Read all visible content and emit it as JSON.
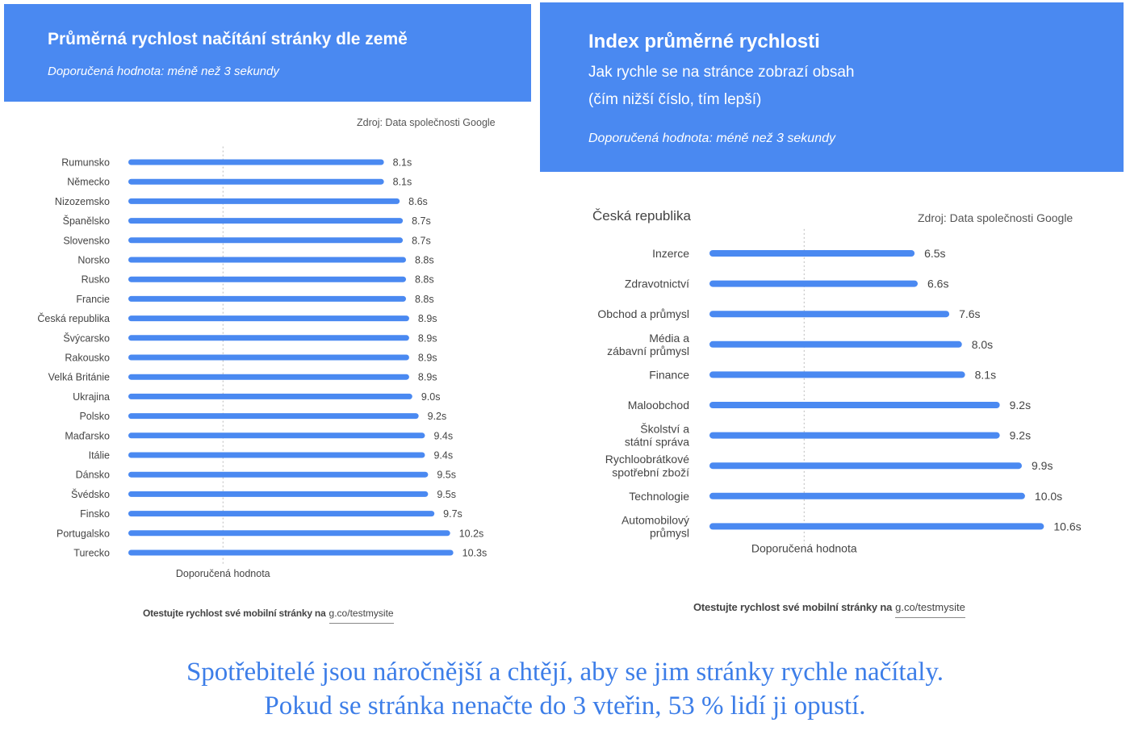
{
  "left": {
    "title": "Průměrná rychlost načítání stránky dle země",
    "note": "Doporučená hodnota: méně než 3 sekundy",
    "source": "Zdroj: Data společnosti Google",
    "footer_lead": "Otestujte rychlost své mobilní stránky na",
    "footer_link": "g.co/testmysite"
  },
  "right": {
    "title": "Index průměrné rychlosti",
    "subtitle_line1": "Jak rychle se na stránce zobrazí obsah",
    "subtitle_line2": "(čím nižší číslo, tím lepší)",
    "note": "Doporučená hodnota: méně než 3 sekundy",
    "chart_title": "Česká republika",
    "source": "Zdroj: Data společnosti Google",
    "footer_lead": "Otestujte rychlost své mobilní stránky na",
    "footer_link": "g.co/testmysite"
  },
  "caption": {
    "line1": "Spotřebitelé jsou náročnější a chtějí, aby se jim stránky rychle načítaly.",
    "line2": "Pokud se stránka nenačte do 3 vteřin, 53 % lidí ji opustí."
  },
  "colors": {
    "bar": "#4a89f1",
    "header": "#4a89f1",
    "caption": "#3d7ee8"
  },
  "chart_data": [
    {
      "type": "bar",
      "orientation": "horizontal",
      "title": "Průměrná rychlost načítání stránky dle země",
      "unit": "s",
      "reference_line": {
        "value": 3,
        "label": "Doporučená hodnota"
      },
      "categories": [
        "Rumunsko",
        "Německo",
        "Nizozemsko",
        "Španělsko",
        "Slovensko",
        "Norsko",
        "Rusko",
        "Francie",
        "Česká republika",
        "Švýcarsko",
        "Rakousko",
        "Velká Británie",
        "Ukrajina",
        "Polsko",
        "Maďarsko",
        "Itálie",
        "Dánsko",
        "Švédsko",
        "Finsko",
        "Portugalsko",
        "Turecko"
      ],
      "values": [
        8.1,
        8.1,
        8.6,
        8.7,
        8.7,
        8.8,
        8.8,
        8.8,
        8.9,
        8.9,
        8.9,
        8.9,
        9.0,
        9.2,
        9.4,
        9.4,
        9.5,
        9.5,
        9.7,
        10.2,
        10.3
      ],
      "value_labels": [
        "8.1s",
        "8.1s",
        "8.6s",
        "8.7s",
        "8.7s",
        "8.8s",
        "8.8s",
        "8.8s",
        "8.9s",
        "8.9s",
        "8.9s",
        "8.9s",
        "9.0s",
        "9.2s",
        "9.4s",
        "9.4s",
        "9.5s",
        "9.5s",
        "9.7s",
        "10.2s",
        "10.3s"
      ],
      "xlim": [
        0,
        11
      ]
    },
    {
      "type": "bar",
      "orientation": "horizontal",
      "title": "Česká republika",
      "unit": "s",
      "reference_line": {
        "value": 3,
        "label": "Doporučená hodnota"
      },
      "categories": [
        [
          "Inzerce"
        ],
        [
          "Zdravotnictví"
        ],
        [
          "Obchod a průmysl"
        ],
        [
          "Média a",
          "zábavní průmysl"
        ],
        [
          "Finance"
        ],
        [
          "Maloobchod"
        ],
        [
          "Školství a",
          "státní správa"
        ],
        [
          "Rychloobrátkové",
          "spotřební zboží"
        ],
        [
          "Technologie"
        ],
        [
          "Automobilový",
          "průmysl"
        ]
      ],
      "values": [
        6.5,
        6.6,
        7.6,
        8.0,
        8.1,
        9.2,
        9.2,
        9.9,
        10.0,
        10.6
      ],
      "value_labels": [
        "6.5s",
        "6.6s",
        "7.6s",
        "8.0s",
        "8.1s",
        "9.2s",
        "9.2s",
        "9.9s",
        "10.0s",
        "10.6s"
      ],
      "xlim": [
        0,
        11
      ]
    }
  ]
}
